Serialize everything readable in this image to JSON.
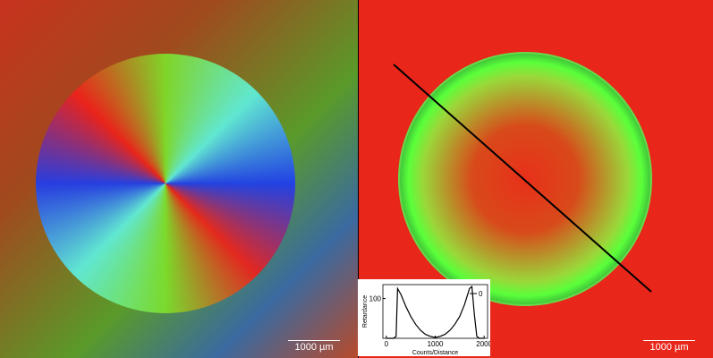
{
  "left_panel": {
    "scale_bar": "1000 µm"
  },
  "right_panel": {
    "scale_bar": "1000 µm"
  },
  "chart_data": {
    "type": "line",
    "ylabel": "Retardance",
    "xlabel": "Counts/Distance",
    "x": [
      0,
      150,
      200,
      230,
      300,
      400,
      500,
      600,
      700,
      800,
      900,
      1000,
      1100,
      1200,
      1300,
      1400,
      1500,
      1600,
      1650,
      1700,
      1750,
      1800,
      1850,
      1900,
      2000
    ],
    "series": [
      {
        "name": "0",
        "color": "#000000",
        "values": [
          0,
          0,
          5,
          125,
          110,
          80,
          55,
          35,
          20,
          10,
          5,
          2,
          5,
          10,
          20,
          35,
          55,
          85,
          105,
          125,
          130,
          60,
          5,
          0,
          0
        ]
      }
    ],
    "xlim": [
      -70,
      2070
    ],
    "ylim": [
      0,
      135
    ],
    "xticks": [
      0,
      1000,
      2000
    ],
    "yticks": [
      100
    ]
  }
}
